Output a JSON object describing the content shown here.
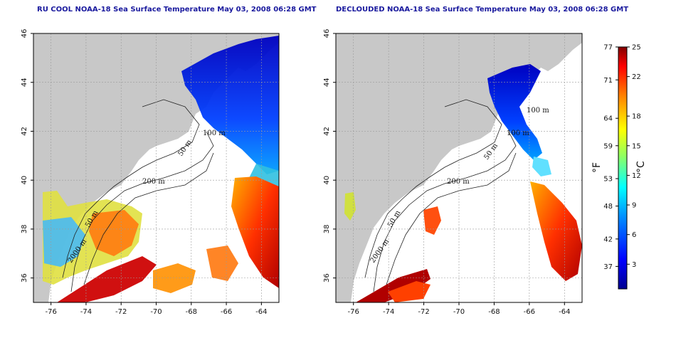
{
  "left_map": {
    "title": "RU COOL NOAA-18 Sea Surface Temperature May 03, 2008 06:28 GMT",
    "contour_labels": [
      "100 m",
      "50 m",
      "200 m",
      "50 m",
      "2000 m"
    ]
  },
  "right_map": {
    "title": "DECLOUDED NOAA-18 Sea Surface Temperature May 03, 2008 06:28 GMT",
    "contour_labels": [
      "100 m",
      "100 m",
      "50 m",
      "200 m",
      "50 m",
      "2000 m"
    ]
  },
  "axes": {
    "lon_ticks": [
      "-76",
      "-74",
      "-72",
      "-70",
      "-68",
      "-66",
      "-64"
    ],
    "lat_ticks": [
      "46",
      "44",
      "42",
      "40",
      "38",
      "36"
    ],
    "lon_range": [
      -77,
      -63
    ],
    "lat_range": [
      35,
      46
    ]
  },
  "colorbar": {
    "fahrenheit_ticks": [
      "77",
      "71",
      "64",
      "59",
      "53",
      "48",
      "42",
      "37"
    ],
    "celsius_ticks": [
      "25",
      "22",
      "18",
      "15",
      "12",
      "9",
      "6",
      "3"
    ],
    "f_unit": "°F",
    "c_unit": "°C",
    "colors": [
      "#00008f",
      "#0000ff",
      "#0080ff",
      "#00ffff",
      "#80ff80",
      "#ffff00",
      "#ff8000",
      "#ff0000",
      "#800000"
    ]
  },
  "colors": {
    "land": "#c8c8c8",
    "title": "#1a1a9e",
    "grid": "#9a9a9a"
  }
}
